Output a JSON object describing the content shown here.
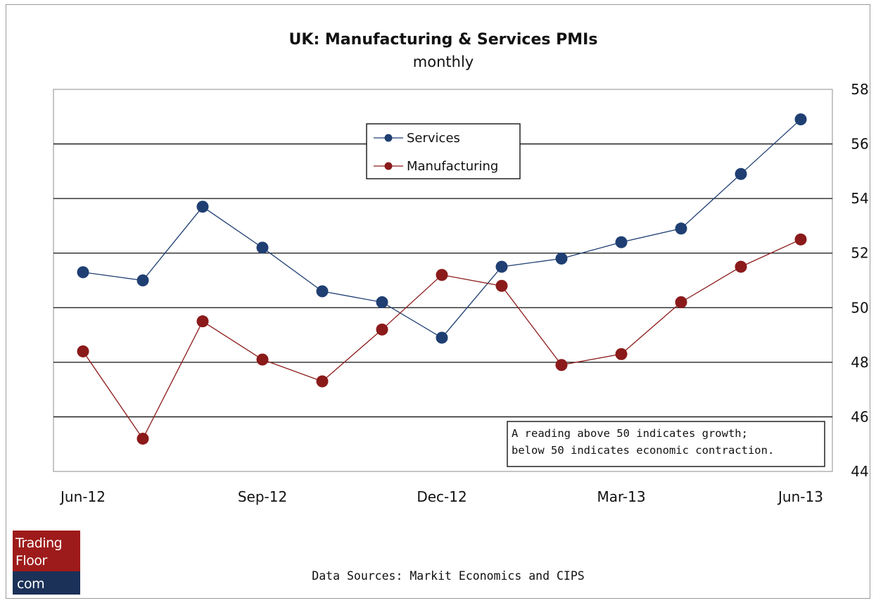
{
  "chart_data": {
    "type": "line",
    "title": "UK: Manufacturing & Services PMIs",
    "subtitle": "monthly",
    "x": [
      "Jun-12",
      "Jul-12",
      "Aug-12",
      "Sep-12",
      "Oct-12",
      "Nov-12",
      "Dec-12",
      "Jan-13",
      "Feb-13",
      "Mar-13",
      "Apr-13",
      "May-13",
      "Jun-13"
    ],
    "x_tick_labels": [
      "Jun-12",
      "Sep-12",
      "Dec-12",
      "Mar-13",
      "Jun-13"
    ],
    "y_tick_labels": [
      "44",
      "46",
      "48",
      "50",
      "52",
      "54",
      "56",
      "58"
    ],
    "ylim": [
      44,
      58
    ],
    "y_axis_side": "right",
    "grid": "horizontal",
    "legend_position": "top-center",
    "series": [
      {
        "name": "Services",
        "color": "#1f3f73",
        "values": [
          51.3,
          51.0,
          53.7,
          52.2,
          50.6,
          50.2,
          48.9,
          51.5,
          51.8,
          52.4,
          52.9,
          54.9,
          56.9
        ]
      },
      {
        "name": "Manufacturing",
        "color": "#8b1a1a",
        "values": [
          48.4,
          45.2,
          49.5,
          48.1,
          47.3,
          49.2,
          51.2,
          50.8,
          47.9,
          48.3,
          50.2,
          51.5,
          52.5
        ]
      }
    ],
    "annotation": {
      "line1": "A reading above 50 indicates growth;",
      "line2": "below 50 indicates economic contraction."
    },
    "source": "Data Sources: Markit Economics and CIPS"
  },
  "logo": {
    "line1": "Trading",
    "line2": "Floor",
    "line3": "com",
    "top_color": "#9e1b1b",
    "bottom_color": "#1b3158"
  }
}
